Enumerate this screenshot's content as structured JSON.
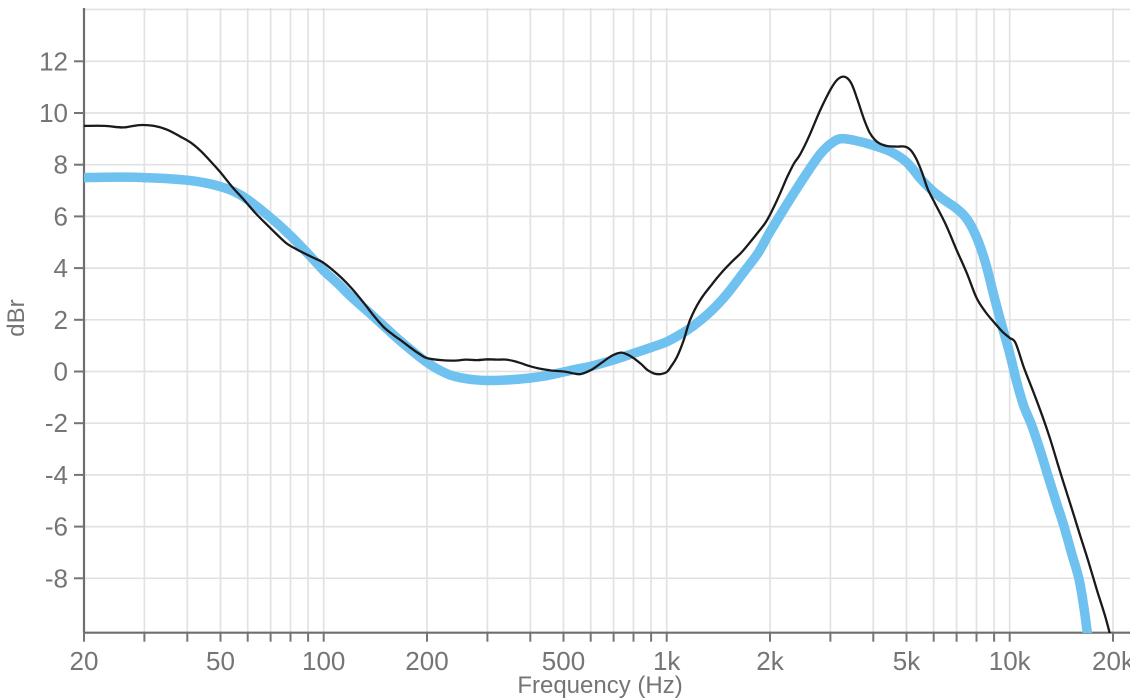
{
  "chart_data": {
    "type": "line",
    "title": "",
    "xlabel": "Frequency (Hz)",
    "ylabel": "dBr",
    "x_scale": "log",
    "xlim": [
      20,
      20600
    ],
    "ylim": [
      -10.1,
      14.1
    ],
    "grid": true,
    "legend": "none",
    "x_gridlines_hz": [
      20,
      30,
      40,
      50,
      60,
      70,
      80,
      90,
      100,
      200,
      300,
      400,
      500,
      600,
      700,
      800,
      900,
      1000,
      2000,
      3000,
      4000,
      5000,
      6000,
      7000,
      8000,
      9000,
      10000,
      20000
    ],
    "x_labeled_ticks": [
      {
        "v": 20,
        "l": "20"
      },
      {
        "v": 50,
        "l": "50"
      },
      {
        "v": 100,
        "l": "100"
      },
      {
        "v": 200,
        "l": "200"
      },
      {
        "v": 500,
        "l": "500"
      },
      {
        "v": 1000,
        "l": "1k"
      },
      {
        "v": 2000,
        "l": "2k"
      },
      {
        "v": 5000,
        "l": "5k"
      },
      {
        "v": 10000,
        "l": "10k"
      },
      {
        "v": 20000,
        "l": "20k"
      }
    ],
    "y_gridlines_db": [
      -8,
      -6,
      -4,
      -2,
      0,
      2,
      4,
      6,
      8,
      10,
      12,
      14
    ],
    "y_labeled_ticks": [
      -8,
      -6,
      -4,
      -2,
      0,
      2,
      4,
      6,
      8,
      10,
      12
    ],
    "series": [
      {
        "name": "thick-blue-smoothed-curve",
        "color": "#6fc1f0",
        "stroke_width": 9.5,
        "points": [
          [
            20,
            7.5
          ],
          [
            25,
            7.52
          ],
          [
            30,
            7.5
          ],
          [
            35,
            7.46
          ],
          [
            40,
            7.4
          ],
          [
            45,
            7.3
          ],
          [
            50,
            7.15
          ],
          [
            55,
            6.95
          ],
          [
            60,
            6.65
          ],
          [
            70,
            5.95
          ],
          [
            80,
            5.25
          ],
          [
            90,
            4.55
          ],
          [
            100,
            3.9
          ],
          [
            110,
            3.4
          ],
          [
            120,
            2.9
          ],
          [
            135,
            2.3
          ],
          [
            150,
            1.75
          ],
          [
            170,
            1.1
          ],
          [
            200,
            0.35
          ],
          [
            230,
            -0.1
          ],
          [
            260,
            -0.28
          ],
          [
            300,
            -0.35
          ],
          [
            350,
            -0.32
          ],
          [
            400,
            -0.25
          ],
          [
            450,
            -0.15
          ],
          [
            500,
            -0.02
          ],
          [
            550,
            0.1
          ],
          [
            600,
            0.2
          ],
          [
            700,
            0.45
          ],
          [
            800,
            0.7
          ],
          [
            900,
            0.93
          ],
          [
            1000,
            1.15
          ],
          [
            1100,
            1.45
          ],
          [
            1200,
            1.78
          ],
          [
            1350,
            2.35
          ],
          [
            1500,
            3.0
          ],
          [
            1700,
            3.95
          ],
          [
            1850,
            4.6
          ],
          [
            2000,
            5.4
          ],
          [
            2200,
            6.3
          ],
          [
            2400,
            7.1
          ],
          [
            2600,
            7.8
          ],
          [
            2800,
            8.4
          ],
          [
            3000,
            8.8
          ],
          [
            3200,
            9.0
          ],
          [
            3500,
            8.95
          ],
          [
            4000,
            8.75
          ],
          [
            4500,
            8.5
          ],
          [
            5000,
            8.1
          ],
          [
            5500,
            7.45
          ],
          [
            6000,
            6.95
          ],
          [
            6500,
            6.6
          ],
          [
            7000,
            6.3
          ],
          [
            7500,
            5.9
          ],
          [
            8000,
            5.2
          ],
          [
            8500,
            4.2
          ],
          [
            9000,
            2.9
          ],
          [
            9500,
            1.75
          ],
          [
            10000,
            0.7
          ],
          [
            10500,
            -0.45
          ],
          [
            11000,
            -1.35
          ],
          [
            11600,
            -2.1
          ],
          [
            12400,
            -3.25
          ],
          [
            12900,
            -4.0
          ],
          [
            13700,
            -5.1
          ],
          [
            14400,
            -6.0
          ],
          [
            15200,
            -7.1
          ],
          [
            15900,
            -8.0
          ],
          [
            16400,
            -9.0
          ],
          [
            16900,
            -10.3
          ],
          [
            17200,
            -11.2
          ]
        ]
      },
      {
        "name": "thin-black-measured-curve",
        "color": "#1a1a1a",
        "stroke_width": 2.3,
        "points": [
          [
            20,
            9.5
          ],
          [
            23,
            9.5
          ],
          [
            26,
            9.44
          ],
          [
            29,
            9.53
          ],
          [
            32,
            9.5
          ],
          [
            35,
            9.35
          ],
          [
            38,
            9.1
          ],
          [
            41,
            8.85
          ],
          [
            44,
            8.5
          ],
          [
            47,
            8.1
          ],
          [
            50,
            7.7
          ],
          [
            54,
            7.15
          ],
          [
            58,
            6.7
          ],
          [
            63,
            6.15
          ],
          [
            68,
            5.7
          ],
          [
            73,
            5.3
          ],
          [
            78,
            4.95
          ],
          [
            84,
            4.7
          ],
          [
            90,
            4.5
          ],
          [
            95,
            4.35
          ],
          [
            100,
            4.2
          ],
          [
            110,
            3.75
          ],
          [
            120,
            3.25
          ],
          [
            130,
            2.7
          ],
          [
            140,
            2.15
          ],
          [
            150,
            1.7
          ],
          [
            160,
            1.4
          ],
          [
            170,
            1.15
          ],
          [
            180,
            0.9
          ],
          [
            190,
            0.68
          ],
          [
            200,
            0.52
          ],
          [
            220,
            0.44
          ],
          [
            240,
            0.42
          ],
          [
            260,
            0.46
          ],
          [
            280,
            0.44
          ],
          [
            300,
            0.47
          ],
          [
            320,
            0.46
          ],
          [
            340,
            0.46
          ],
          [
            360,
            0.4
          ],
          [
            380,
            0.3
          ],
          [
            400,
            0.2
          ],
          [
            430,
            0.1
          ],
          [
            460,
            0.04
          ],
          [
            500,
            0.0
          ],
          [
            530,
            -0.06
          ],
          [
            560,
            -0.1
          ],
          [
            600,
            0.05
          ],
          [
            640,
            0.3
          ],
          [
            680,
            0.55
          ],
          [
            710,
            0.68
          ],
          [
            740,
            0.73
          ],
          [
            770,
            0.65
          ],
          [
            800,
            0.52
          ],
          [
            840,
            0.3
          ],
          [
            880,
            0.05
          ],
          [
            920,
            -0.08
          ],
          [
            960,
            -0.1
          ],
          [
            1000,
            -0.02
          ],
          [
            1030,
            0.2
          ],
          [
            1070,
            0.55
          ],
          [
            1120,
            1.2
          ],
          [
            1170,
            2.0
          ],
          [
            1250,
            2.75
          ],
          [
            1350,
            3.35
          ],
          [
            1450,
            3.85
          ],
          [
            1550,
            4.25
          ],
          [
            1650,
            4.6
          ],
          [
            1750,
            5.0
          ],
          [
            1850,
            5.4
          ],
          [
            1950,
            5.8
          ],
          [
            2050,
            6.35
          ],
          [
            2150,
            6.95
          ],
          [
            2250,
            7.55
          ],
          [
            2350,
            8.05
          ],
          [
            2450,
            8.4
          ],
          [
            2600,
            9.1
          ],
          [
            2800,
            10.1
          ],
          [
            3000,
            10.9
          ],
          [
            3150,
            11.3
          ],
          [
            3300,
            11.4
          ],
          [
            3450,
            11.15
          ],
          [
            3600,
            10.5
          ],
          [
            3750,
            9.8
          ],
          [
            3900,
            9.25
          ],
          [
            4050,
            8.95
          ],
          [
            4200,
            8.8
          ],
          [
            4400,
            8.72
          ],
          [
            4700,
            8.7
          ],
          [
            4950,
            8.7
          ],
          [
            5150,
            8.55
          ],
          [
            5350,
            8.2
          ],
          [
            5550,
            7.7
          ],
          [
            5750,
            7.1
          ],
          [
            6000,
            6.6
          ],
          [
            6500,
            5.7
          ],
          [
            7000,
            4.7
          ],
          [
            7500,
            3.8
          ],
          [
            8000,
            2.85
          ],
          [
            8500,
            2.3
          ],
          [
            9000,
            1.9
          ],
          [
            9500,
            1.55
          ],
          [
            10000,
            1.3
          ],
          [
            10400,
            1.1
          ],
          [
            11000,
            0.15
          ],
          [
            12000,
            -1.15
          ],
          [
            13000,
            -2.45
          ],
          [
            14000,
            -3.85
          ],
          [
            15000,
            -5.1
          ],
          [
            16000,
            -6.3
          ],
          [
            17000,
            -7.4
          ],
          [
            18000,
            -8.5
          ],
          [
            19000,
            -9.5
          ],
          [
            19900,
            -10.5
          ]
        ]
      }
    ]
  },
  "styles": {
    "background": "#ffffff",
    "grid_color": "#e2e2e2",
    "axis_color": "#6e6e6e",
    "tick_color": "#757575",
    "label_color": "#757575"
  }
}
